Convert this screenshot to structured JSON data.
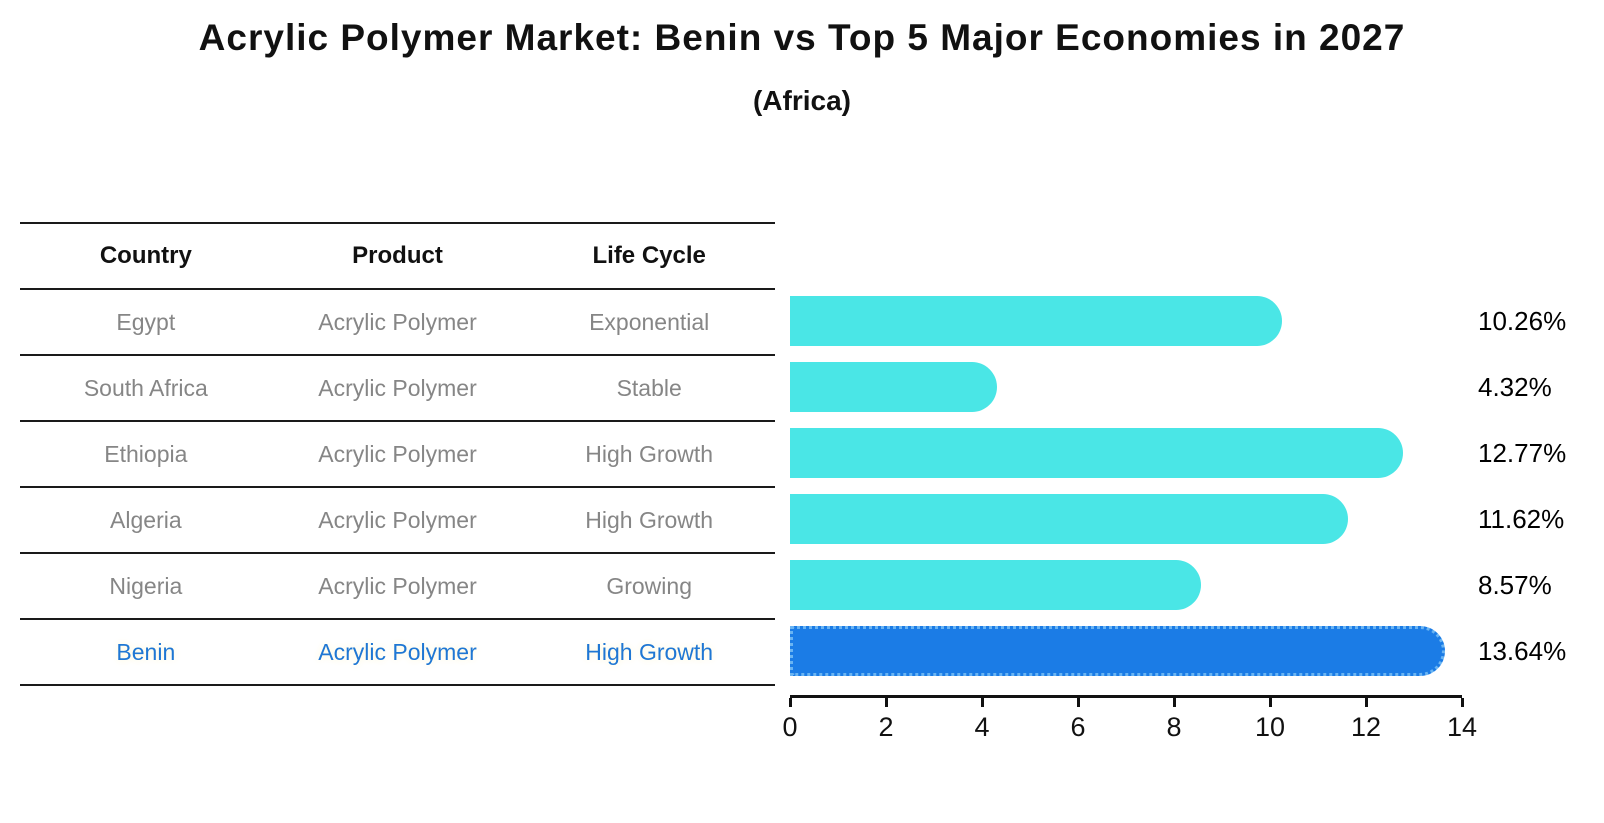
{
  "title": "Acrylic Polymer Market: Benin vs Top 5 Major Economies in 2027",
  "subtitle": "(Africa)",
  "colors": {
    "bar": "#4ae6e6",
    "highlight_bar": "#1b7ce6",
    "highlight_border": "#6ab4f2",
    "table_text": "#868686",
    "header_text": "#111111",
    "highlight_text": "#1f77d4",
    "axis": "#111111"
  },
  "table": {
    "headers": [
      "Country",
      "Product",
      "Life Cycle"
    ],
    "rows": [
      {
        "country": "Egypt",
        "product": "Acrylic Polymer",
        "life_cycle": "Exponential"
      },
      {
        "country": "South Africa",
        "product": "Acrylic Polymer",
        "life_cycle": "Stable"
      },
      {
        "country": "Ethiopia",
        "product": "Acrylic Polymer",
        "life_cycle": "High Growth"
      },
      {
        "country": "Algeria",
        "product": "Acrylic Polymer",
        "life_cycle": "High Growth"
      },
      {
        "country": "Nigeria",
        "product": "Acrylic Polymer",
        "life_cycle": "Growing"
      },
      {
        "country": "Benin",
        "product": "Acrylic Polymer",
        "life_cycle": "High Growth"
      }
    ]
  },
  "chart_data": {
    "type": "bar",
    "orientation": "horizontal",
    "title": "Acrylic Polymer Market: Benin vs Top 5 Major Economies in 2027",
    "subtitle": "(Africa)",
    "categories": [
      "Egypt",
      "South Africa",
      "Ethiopia",
      "Algeria",
      "Nigeria",
      "Benin"
    ],
    "values": [
      10.26,
      4.32,
      12.77,
      11.62,
      8.57,
      13.64
    ],
    "value_labels": [
      "10.26%",
      "4.32%",
      "12.77%",
      "11.62%",
      "8.57%",
      "13.64%"
    ],
    "unit": "%",
    "xlim": [
      0,
      14
    ],
    "xticks": [
      0,
      2,
      4,
      6,
      8,
      10,
      12,
      14
    ],
    "highlight_category": "Benin",
    "grid": false,
    "legend": false
  }
}
